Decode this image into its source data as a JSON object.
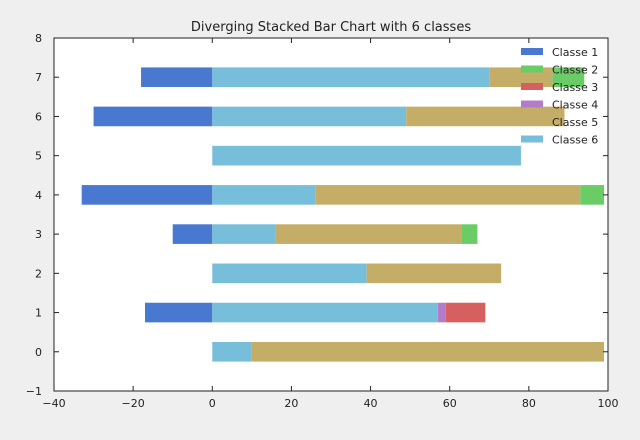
{
  "chart_data": {
    "type": "bar",
    "orientation": "horizontal",
    "stacked": true,
    "diverging": true,
    "title": "Diverging Stacked Bar Chart with 6 classes",
    "xlabel": "",
    "ylabel": "",
    "xlim": [
      -40,
      100
    ],
    "ylim": [
      -1,
      8
    ],
    "x_ticks": [
      -40,
      -20,
      0,
      20,
      40,
      60,
      80,
      100
    ],
    "y_ticks": [
      -1,
      0,
      1,
      2,
      3,
      4,
      5,
      6,
      7,
      8
    ],
    "categories": [
      0,
      1,
      2,
      3,
      4,
      5,
      6,
      7
    ],
    "grid": false,
    "legend_position": "top-right",
    "series": [
      {
        "name": "Classe 1",
        "color": "#4878cf",
        "values": [
          0,
          -17,
          0,
          -10,
          -33,
          0,
          -30,
          -18
        ]
      },
      {
        "name": "Classe 2",
        "color": "#6acc65",
        "values": [
          0,
          0,
          0,
          4,
          6,
          0,
          0,
          8
        ]
      },
      {
        "name": "Classe 3",
        "color": "#d65f5f",
        "values": [
          0,
          10,
          0,
          0,
          0,
          0,
          0,
          0
        ]
      },
      {
        "name": "Classe 4",
        "color": "#b47cc7",
        "values": [
          0,
          2,
          0,
          0,
          0,
          0,
          0,
          0
        ]
      },
      {
        "name": "Classe 5",
        "color": "#c4ad66",
        "values": [
          89,
          0,
          34,
          47,
          67,
          0,
          40,
          16
        ]
      },
      {
        "name": "Classe 6",
        "color": "#77bedb",
        "values": [
          10,
          57,
          39,
          16,
          26,
          78,
          49,
          70
        ]
      }
    ],
    "positive_stack_order": [
      "Classe 6",
      "Classe 4",
      "Classe 3",
      "Classe 5",
      "Classe 2"
    ]
  }
}
